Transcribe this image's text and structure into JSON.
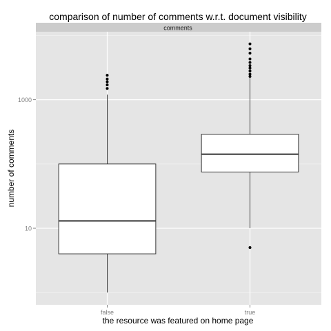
{
  "chart_data": {
    "type": "boxplot",
    "title": "comparison of number of comments w.r.t. document visibility",
    "facet_label": "comments",
    "xlabel": "the resource was featured on home page",
    "ylabel": "number of comments",
    "y_scale": "log10",
    "ylim": [
      1,
      10000
    ],
    "y_ticks": [
      {
        "value": 10,
        "label": "10"
      },
      {
        "value": 1000,
        "label": "1000"
      }
    ],
    "categories": [
      "false",
      "true"
    ],
    "boxes": [
      {
        "category": "false",
        "whisker_low": 1,
        "q1": 4,
        "median": 13,
        "q3": 100,
        "whisker_high": 1200,
        "outliers": [
          1500,
          1700,
          1900,
          2100,
          2400
        ]
      },
      {
        "category": "true",
        "whisker_low": 10,
        "q1": 75,
        "median": 142,
        "q3": 290,
        "whisker_high": 2200,
        "outliers": [
          5,
          2300,
          2500,
          2800,
          3100,
          3400,
          3800,
          4300,
          5300,
          6200,
          7400
        ]
      }
    ],
    "grid": true,
    "legend": "none"
  }
}
